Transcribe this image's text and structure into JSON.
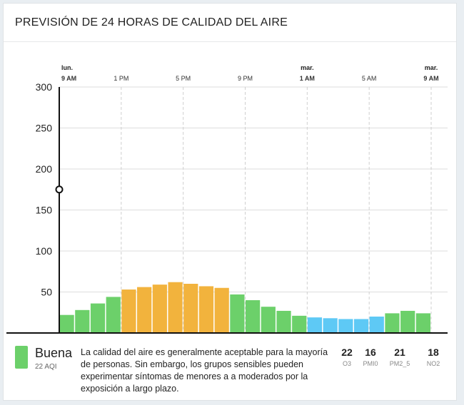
{
  "header": {
    "title": "PREVISIÓN DE 24 HORAS DE CALIDAD DEL AIRE"
  },
  "colors": {
    "good": "#6cd06a",
    "moderate": "#f2b33d",
    "low": "#5ec9f5",
    "axis": "#111111",
    "grid": "#dddddd"
  },
  "chart_data": {
    "type": "bar",
    "x_ticks": [
      {
        "day": "lun.",
        "time": "9 AM",
        "hour": 0,
        "bold": true
      },
      {
        "day": "",
        "time": "1 PM",
        "hour": 4,
        "bold": false
      },
      {
        "day": "",
        "time": "5 PM",
        "hour": 8,
        "bold": false
      },
      {
        "day": "",
        "time": "9 PM",
        "hour": 12,
        "bold": false
      },
      {
        "day": "mar.",
        "time": "1 AM",
        "hour": 16,
        "bold": true
      },
      {
        "day": "",
        "time": "5 AM",
        "hour": 20,
        "bold": false
      },
      {
        "day": "mar.",
        "time": "9 AM",
        "hour": 24,
        "bold": true
      }
    ],
    "y_ticks": [
      50,
      100,
      150,
      200,
      250,
      300
    ],
    "ylim": [
      0,
      300
    ],
    "marker_value": 175,
    "values": [
      22,
      28,
      36,
      44,
      53,
      56,
      59,
      62,
      60,
      57,
      55,
      47,
      40,
      32,
      27,
      21,
      19,
      18,
      17,
      17,
      20,
      24,
      27,
      24
    ],
    "categories": [
      "good",
      "good",
      "good",
      "good",
      "moderate",
      "moderate",
      "moderate",
      "moderate",
      "moderate",
      "moderate",
      "moderate",
      "good",
      "good",
      "good",
      "good",
      "good",
      "low",
      "low",
      "low",
      "low",
      "low",
      "good",
      "good",
      "good"
    ],
    "grid": true
  },
  "footer": {
    "level": "Buena",
    "aqi": "22 AQI",
    "description": "La calidad del aire es generalmente aceptable para la mayoría de personas. Sin embargo, los grupos sensibles pueden experimentar síntomas de menores a a moderados por la exposición a largo plazo.",
    "pollutants": [
      {
        "value": "22",
        "label": "O3"
      },
      {
        "value": "16",
        "label": "PMI0"
      },
      {
        "value": "21",
        "label": "PM2_5"
      },
      {
        "value": "18",
        "label": "NO2"
      }
    ]
  }
}
